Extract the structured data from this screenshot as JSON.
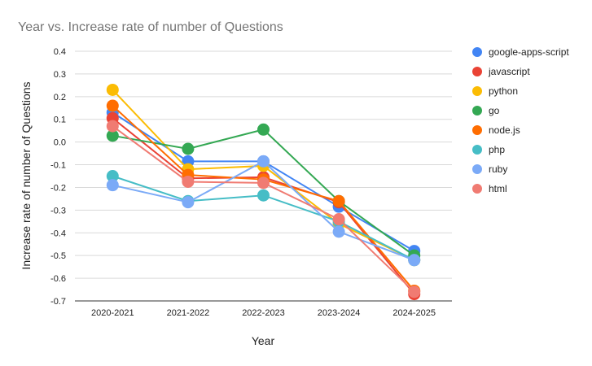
{
  "chart_data": {
    "type": "line",
    "title": "Year vs. Increase rate of number of Questions",
    "xlabel": "Year",
    "ylabel": "Increase rate of number of Questions",
    "categories": [
      "2020-2021",
      "2021-2022",
      "2022-2023",
      "2023-2024",
      "2024-2025"
    ],
    "ylim": [
      -0.7,
      0.4
    ],
    "yticks": [
      "0.4",
      "0.3",
      "0.2",
      "0.1",
      "0.0",
      "-0.1",
      "-0.2",
      "-0.3",
      "-0.4",
      "-0.5",
      "-0.6",
      "-0.7"
    ],
    "grid": true,
    "legend_position": "right",
    "series": [
      {
        "name": "google-apps-script",
        "color": "#4285F4",
        "values": [
          0.13,
          -0.085,
          -0.085,
          -0.285,
          -0.48
        ]
      },
      {
        "name": "javascript",
        "color": "#EA4335",
        "values": [
          0.105,
          -0.16,
          -0.155,
          -0.265,
          -0.67
        ]
      },
      {
        "name": "python",
        "color": "#FBBC04",
        "values": [
          0.23,
          -0.12,
          -0.105,
          -0.36,
          -0.52
        ]
      },
      {
        "name": "go",
        "color": "#34A853",
        "values": [
          0.028,
          -0.03,
          0.055,
          -0.26,
          -0.5
        ]
      },
      {
        "name": "node.js",
        "color": "#FF6D01",
        "values": [
          0.16,
          -0.145,
          -0.165,
          -0.26,
          -0.655
        ]
      },
      {
        "name": "php",
        "color": "#46BDC6",
        "values": [
          -0.15,
          -0.26,
          -0.235,
          -0.35,
          -0.52
        ]
      },
      {
        "name": "ruby",
        "color": "#7BAAF7",
        "values": [
          -0.19,
          -0.265,
          -0.085,
          -0.395,
          -0.52
        ]
      },
      {
        "name": "html",
        "color": "#F07B72",
        "values": [
          0.07,
          -0.175,
          -0.18,
          -0.34,
          -0.66
        ]
      }
    ]
  }
}
